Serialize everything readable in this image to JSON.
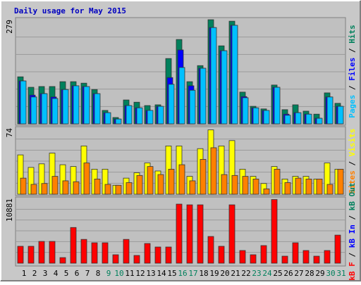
{
  "chart_data": [
    {
      "type": "bar",
      "title": "Daily usage for May 2015",
      "ylim": [
        0,
        279
      ],
      "yticks": [
        279
      ],
      "series": [
        {
          "name": "Pages",
          "color": "#00C0FF",
          "values": [
            115,
            72,
            81,
            68,
            92,
            102,
            100,
            81,
            30,
            13,
            49,
            43,
            36,
            47,
            106,
            151,
            90,
            149,
            258,
            196,
            264,
            70,
            43,
            36,
            98,
            23,
            30,
            26,
            15,
            72,
            47
          ]
        },
        {
          "name": "Files",
          "color": "#0000FF",
          "values": [
            115,
            77,
            81,
            72,
            92,
            102,
            100,
            81,
            30,
            13,
            49,
            43,
            36,
            47,
            124,
            198,
            102,
            149,
            258,
            196,
            264,
            73,
            43,
            36,
            98,
            26,
            30,
            26,
            15,
            72,
            47
          ]
        },
        {
          "name": "Hits",
          "color": "#00805C",
          "values": [
            126,
            98,
            100,
            100,
            113,
            113,
            109,
            92,
            36,
            17,
            64,
            58,
            49,
            51,
            175,
            226,
            113,
            156,
            279,
            209,
            275,
            85,
            47,
            40,
            104,
            38,
            51,
            34,
            26,
            83,
            55
          ]
        }
      ]
    },
    {
      "type": "bar",
      "ylim": [
        0,
        74
      ],
      "yticks": [
        74
      ],
      "series": [
        {
          "name": "Sites",
          "color": "#FF8000",
          "values": [
            18,
            11,
            12,
            20,
            15,
            14,
            35,
            17,
            11,
            10,
            13,
            21,
            31,
            22,
            28,
            33,
            15,
            39,
            52,
            22,
            21,
            20,
            17,
            6,
            28,
            13,
            18,
            17,
            17,
            11,
            28
          ]
        },
        {
          "name": "Visits",
          "color": "#FFFF00",
          "values": [
            44,
            30,
            34,
            46,
            33,
            31,
            54,
            28,
            28,
            10,
            18,
            24,
            35,
            26,
            54,
            54,
            20,
            51,
            72,
            54,
            60,
            28,
            20,
            12,
            31,
            17,
            20,
            20,
            17,
            35,
            28
          ]
        }
      ]
    },
    {
      "type": "bar",
      "ylim": [
        0,
        10881
      ],
      "yticks": [
        10881
      ],
      "categories": [
        "1",
        "2",
        "3",
        "4",
        "5",
        "6",
        "7",
        "8",
        "9",
        "10",
        "11",
        "12",
        "13",
        "14",
        "15",
        "16",
        "17",
        "18",
        "19",
        "20",
        "21",
        "22",
        "23",
        "24",
        "25",
        "26",
        "27",
        "28",
        "29",
        "30",
        "31"
      ],
      "highlight": [
        8,
        9,
        15,
        16,
        22,
        23,
        29,
        30
      ],
      "highlight_color": "#00805C",
      "series": [
        {
          "name": "kB F",
          "color": "#FF0000",
          "values": [
            2840,
            2840,
            3660,
            3660,
            940,
            6000,
            4000,
            3430,
            3430,
            1420,
            4000,
            1300,
            3310,
            2720,
            2720,
            9930,
            9810,
            9810,
            4490,
            2840,
            9810,
            2130,
            1420,
            2960,
            10700,
            1180,
            3430,
            2130,
            1180,
            2130,
            4720
          ]
        },
        {
          "name": "kB In",
          "color": "#0000FF"
        },
        {
          "name": "kB Out",
          "color": "#00805C"
        }
      ]
    }
  ]
}
